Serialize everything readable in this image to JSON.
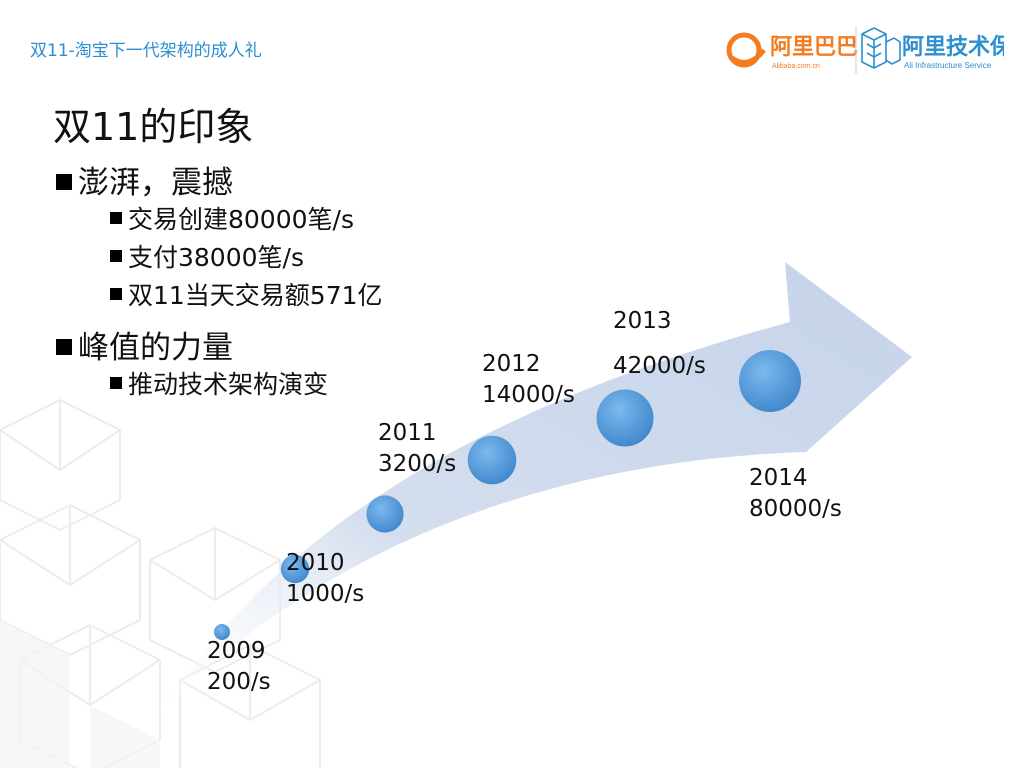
{
  "header": {
    "title": "双11-淘宝下一代架构的成人礼"
  },
  "logo": {
    "alibaba_text": "阿里巴巴",
    "alibaba_sub": "Alibaba.com.cn",
    "service_text": "阿里技术保障",
    "service_sub": "Ali Infrastructure Service",
    "brand_color": "#f47c20",
    "service_color": "#2b8fd0"
  },
  "heading": "双11的印象",
  "bullets": [
    {
      "text": "澎湃，震撼",
      "children": [
        "交易创建80000笔/s",
        "支付38000笔/s",
        "双11当天交易额571亿"
      ]
    },
    {
      "text": "峰值的力量",
      "children": [
        "推动技术架构演变"
      ]
    }
  ],
  "chart_data": {
    "type": "scatter",
    "points": [
      {
        "year": "2009",
        "value": 200,
        "label": "200/s"
      },
      {
        "year": "2010",
        "value": 1000,
        "label": "1000/s"
      },
      {
        "year": "2011",
        "value": 3200,
        "label": "3200/s"
      },
      {
        "year": "2012",
        "value": 14000,
        "label": "14000/s"
      },
      {
        "year": "2013",
        "value": 42000,
        "label": "42000/s"
      },
      {
        "year": "2014",
        "value": 80000,
        "label": "80000/s"
      }
    ],
    "colors": {
      "arrow": "#c9d6ea",
      "dot_dark": "#3a86cc",
      "dot_light": "#6fb0e8"
    }
  }
}
